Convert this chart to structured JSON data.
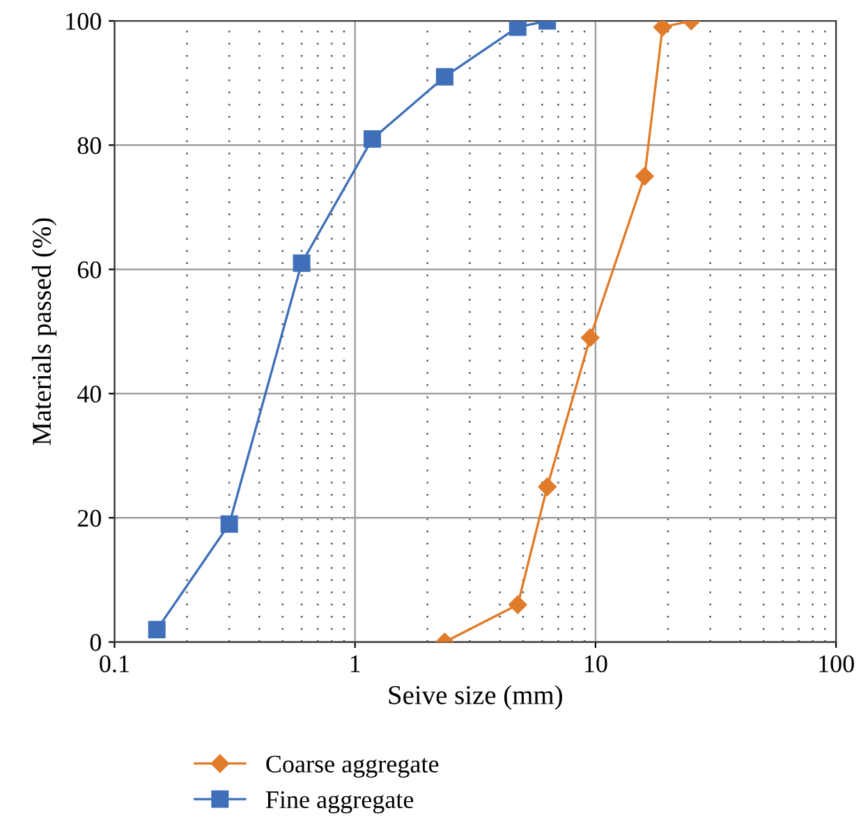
{
  "chart_data": {
    "type": "line",
    "xlabel": "Seive size (mm)",
    "ylabel": "Materials passed (%)",
    "log": "x",
    "xlim": [
      0.1,
      100
    ],
    "xticks": [
      0.1,
      1,
      10,
      100
    ],
    "ylim": [
      0,
      100
    ],
    "yticks": [
      0,
      20,
      40,
      60,
      80,
      100
    ],
    "grid": true,
    "legend": "bottom",
    "series": [
      {
        "name": "Coarse aggregate",
        "color": "#e07b29",
        "marker": "diamond",
        "x": [
          2.36,
          4.75,
          6.3,
          9.5,
          16,
          19,
          25
        ],
        "values": [
          0,
          6,
          25,
          49,
          75,
          99,
          100
        ]
      },
      {
        "name": "Fine aggregate",
        "color": "#3f6fb8",
        "marker": "square",
        "x": [
          0.15,
          0.3,
          0.6,
          1.18,
          2.36,
          4.75,
          6.3
        ],
        "values": [
          2,
          19,
          61,
          81,
          91,
          99,
          100
        ]
      }
    ]
  }
}
